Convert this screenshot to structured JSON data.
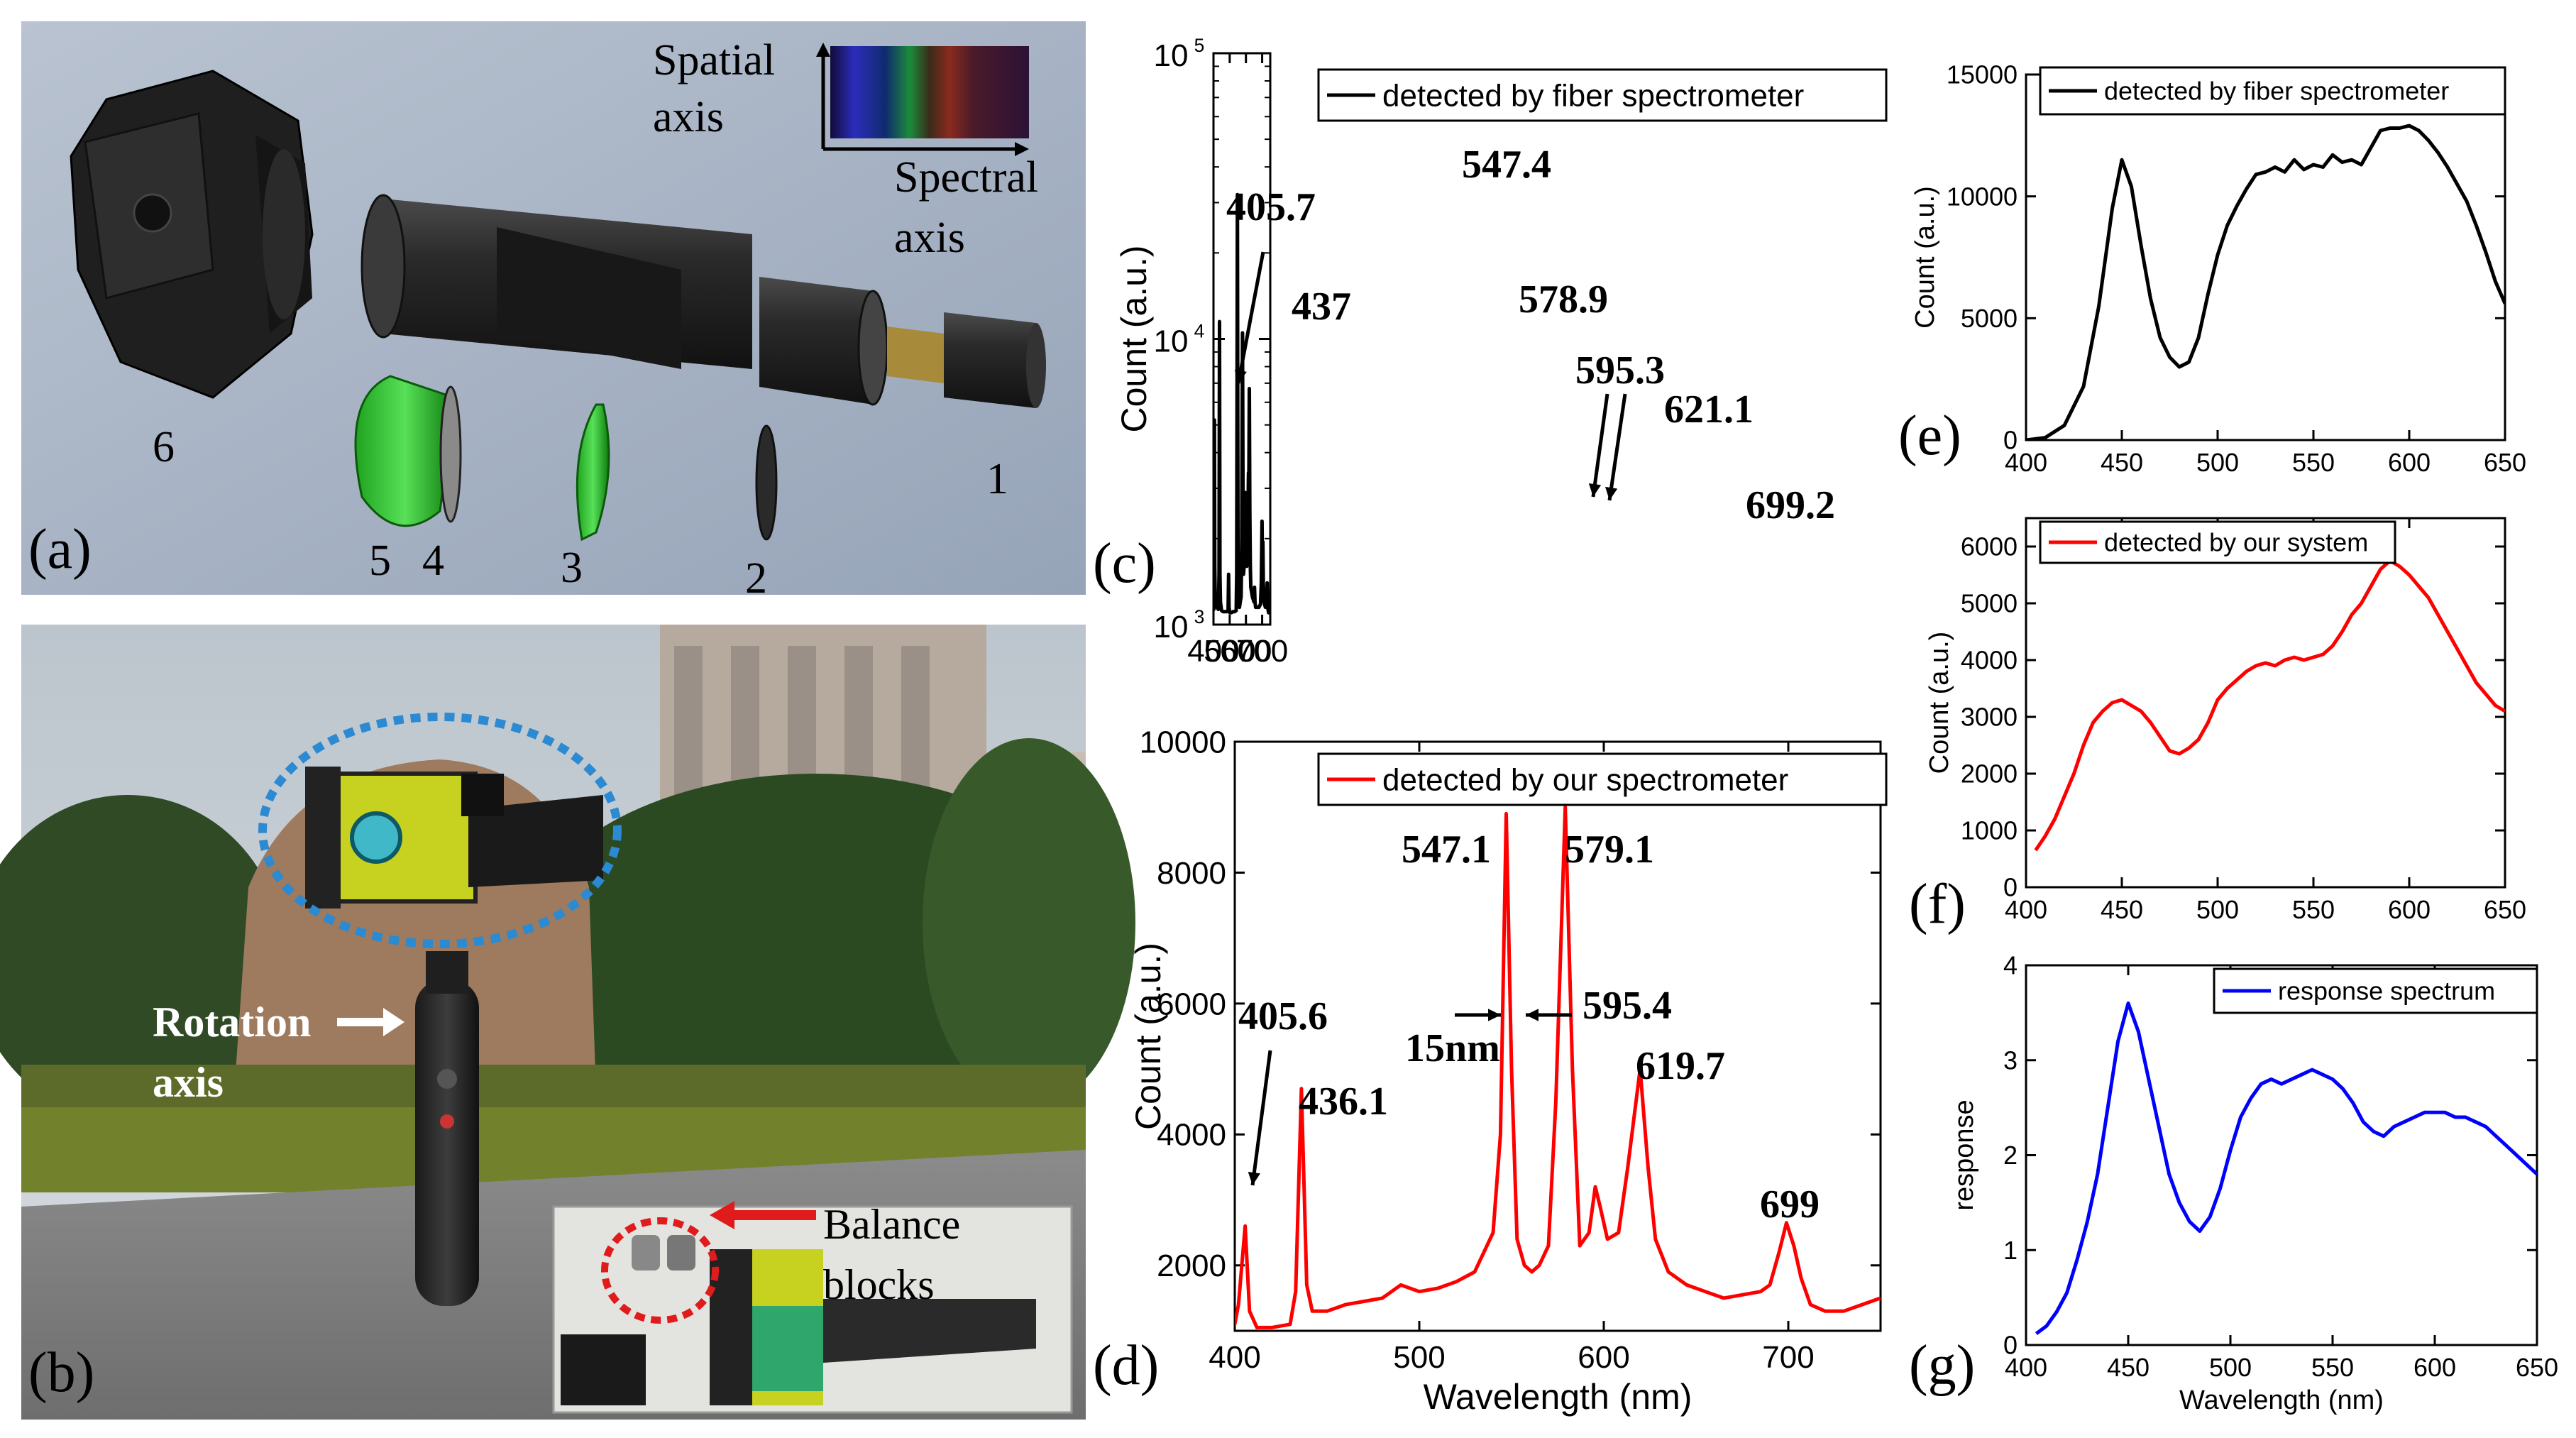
{
  "panels": {
    "a": {
      "label": "(a)",
      "spatial_axis": [
        "Spatial",
        "axis"
      ],
      "spectral_axis": [
        "Spectral",
        "axis"
      ],
      "part_numbers": [
        "1",
        "2",
        "3",
        "4",
        "5",
        "6"
      ]
    },
    "b": {
      "label": "(b)",
      "rotation_axis": [
        "Rotation",
        "axis"
      ],
      "balance_blocks": [
        "Balance",
        "blocks"
      ]
    },
    "c": {
      "label": "(c)"
    },
    "d": {
      "label": "(d)"
    },
    "e": {
      "label": "(e)"
    },
    "f": {
      "label": "(f)"
    },
    "g": {
      "label": "(g)"
    }
  },
  "colors": {
    "fiber": "#000000",
    "our": "#ff1a1a",
    "response": "#1a1aff",
    "render_bg": "#a9b5c6"
  },
  "chart_data": [
    {
      "id": "c",
      "type": "line",
      "ylabel": "Count (a.u.)",
      "xlabel": "",
      "xlim": [
        400,
        750
      ],
      "ylim": [
        1000,
        100000
      ],
      "yscale": "log",
      "xticks": [
        400,
        500,
        600,
        700
      ],
      "ytick_labels": [
        {
          "base": "10",
          "exp": "3"
        },
        {
          "base": "10",
          "exp": "4"
        },
        {
          "base": "10",
          "exp": "5"
        }
      ],
      "legend": "detected by fiber spectrometer",
      "series": [
        {
          "name": "detected by fiber spectrometer",
          "color": "#000000",
          "x": [
            400,
            403,
            405.7,
            408,
            411,
            420,
            430,
            434,
            437,
            440,
            443,
            450,
            460,
            470,
            480,
            490,
            493,
            496,
            500,
            510,
            520,
            530,
            540,
            543,
            547.4,
            551,
            555,
            560,
            565,
            570,
            574,
            578.9,
            582,
            585,
            589,
            592,
            595.3,
            598,
            601,
            605,
            608,
            612,
            615.5,
            618,
            621.1,
            624,
            627,
            630,
            640,
            650,
            653,
            656,
            660,
            670,
            680,
            690,
            695,
            699.2,
            702,
            704.5,
            707,
            712,
            720,
            728,
            731,
            734,
            740,
            750
          ],
          "y": [
            1120,
            1150,
            5200,
            1600,
            1200,
            1150,
            1130,
            1500,
            11500,
            1500,
            1200,
            1120,
            1110,
            1110,
            1110,
            1120,
            1500,
            1150,
            1100,
            1100,
            1110,
            1110,
            1120,
            1500,
            32000,
            2000,
            1300,
            1150,
            1200,
            1250,
            1800,
            10500,
            2800,
            1500,
            1600,
            1800,
            2900,
            2200,
            1800,
            1600,
            1700,
            2200,
            3400,
            3000,
            6700,
            2500,
            1600,
            1350,
            1250,
            1200,
            1350,
            1200,
            1150,
            1150,
            1150,
            1180,
            1400,
            2300,
            1600,
            1950,
            1400,
            1200,
            1150,
            1180,
            1400,
            1150,
            1100,
            1100
          ]
        }
      ],
      "annotations": [
        "405.7",
        "437",
        "547.4",
        "578.9",
        "595.3",
        "621.1",
        "699.2"
      ]
    },
    {
      "id": "d",
      "type": "line",
      "ylabel": "Count (a.u.)",
      "xlabel": "Wavelength (nm)",
      "xlim": [
        400,
        750
      ],
      "ylim": [
        1000,
        10000
      ],
      "xticks": [
        400,
        500,
        600,
        700
      ],
      "yticks": [
        2000,
        4000,
        6000,
        8000,
        10000
      ],
      "legend": "detected by our spectrometer",
      "series": [
        {
          "name": "detected by our spectrometer",
          "color": "#ff0000",
          "x": [
            400,
            402,
            405.6,
            408,
            412,
            420,
            430,
            433,
            436.1,
            439,
            442,
            450,
            460,
            470,
            480,
            490,
            500,
            510,
            520,
            530,
            535,
            540,
            544,
            547.1,
            550,
            553,
            557,
            561,
            565,
            570,
            574,
            579.1,
            583,
            587,
            592,
            595.4,
            598,
            602,
            608,
            613,
            619.7,
            624,
            628,
            635,
            645,
            655,
            665,
            675,
            685,
            690,
            695,
            699,
            703,
            707,
            712,
            720,
            730,
            740,
            750
          ],
          "y": [
            1100,
            1400,
            2600,
            1300,
            1050,
            1050,
            1100,
            1600,
            4700,
            1700,
            1300,
            1300,
            1400,
            1450,
            1500,
            1700,
            1600,
            1650,
            1750,
            1900,
            2200,
            2500,
            4000,
            8900,
            5000,
            2400,
            2000,
            1900,
            2000,
            2300,
            4500,
            9000,
            5000,
            2300,
            2500,
            3200,
            2900,
            2400,
            2500,
            3500,
            5000,
            3500,
            2400,
            1900,
            1700,
            1600,
            1500,
            1550,
            1600,
            1700,
            2200,
            2650,
            2300,
            1800,
            1400,
            1300,
            1300,
            1400,
            1500
          ]
        }
      ],
      "annotations": [
        "405.6",
        "436.1",
        "547.1",
        "579.1",
        "595.4",
        "15nm",
        "619.7",
        "699"
      ]
    },
    {
      "id": "e",
      "type": "line",
      "ylabel": "Count (a.u.)",
      "xlabel": "",
      "xlim": [
        400,
        650
      ],
      "ylim": [
        0,
        15000
      ],
      "xticks": [
        400,
        450,
        500,
        550,
        600,
        650
      ],
      "yticks": [
        0,
        5000,
        10000,
        15000
      ],
      "legend": "detected by fiber spectrometer",
      "series": [
        {
          "name": "detected by fiber spectrometer",
          "color": "#000000",
          "x": [
            400,
            410,
            420,
            430,
            438,
            445,
            450,
            455,
            460,
            465,
            470,
            475,
            480,
            485,
            490,
            495,
            500,
            505,
            510,
            515,
            520,
            525,
            530,
            535,
            540,
            545,
            550,
            555,
            560,
            565,
            570,
            575,
            580,
            585,
            590,
            595,
            600,
            605,
            610,
            615,
            620,
            625,
            630,
            635,
            640,
            645,
            650
          ],
          "y": [
            0,
            100,
            600,
            2200,
            5500,
            9500,
            11500,
            10400,
            8000,
            5800,
            4200,
            3400,
            3000,
            3200,
            4200,
            6000,
            7600,
            8800,
            9600,
            10300,
            10900,
            11000,
            11200,
            11000,
            11500,
            11100,
            11300,
            11200,
            11700,
            11400,
            11500,
            11300,
            12000,
            12700,
            12800,
            12800,
            12900,
            12700,
            12300,
            11800,
            11200,
            10500,
            9800,
            8800,
            7700,
            6500,
            5600
          ]
        }
      ]
    },
    {
      "id": "f",
      "type": "line",
      "ylabel": "Count (a.u.)",
      "xlabel": "",
      "xlim": [
        400,
        650
      ],
      "ylim": [
        0,
        6500
      ],
      "xticks": [
        400,
        450,
        500,
        550,
        600,
        650
      ],
      "yticks": [
        0,
        1000,
        2000,
        3000,
        4000,
        5000,
        6000
      ],
      "legend": "detected by our system",
      "series": [
        {
          "name": "detected by our system",
          "color": "#ff0000",
          "x": [
            405,
            410,
            415,
            420,
            425,
            430,
            435,
            440,
            445,
            450,
            455,
            460,
            465,
            470,
            475,
            480,
            485,
            490,
            495,
            500,
            505,
            510,
            515,
            520,
            525,
            530,
            535,
            540,
            545,
            550,
            555,
            560,
            565,
            570,
            575,
            580,
            585,
            590,
            595,
            600,
            605,
            610,
            615,
            620,
            625,
            630,
            635,
            640,
            645,
            650
          ],
          "y": [
            650,
            900,
            1200,
            1600,
            2000,
            2500,
            2900,
            3100,
            3250,
            3300,
            3200,
            3100,
            2900,
            2650,
            2400,
            2350,
            2450,
            2600,
            2900,
            3300,
            3500,
            3650,
            3800,
            3900,
            3950,
            3900,
            4000,
            4050,
            4000,
            4050,
            4100,
            4250,
            4500,
            4800,
            5000,
            5300,
            5600,
            5750,
            5650,
            5500,
            5300,
            5100,
            4800,
            4500,
            4200,
            3900,
            3600,
            3400,
            3200,
            3100
          ]
        }
      ]
    },
    {
      "id": "g",
      "type": "line",
      "ylabel": "response",
      "xlabel": "Wavelength (nm)",
      "xlim": [
        400,
        650
      ],
      "ylim": [
        0,
        4
      ],
      "xticks": [
        400,
        450,
        500,
        550,
        600,
        650
      ],
      "yticks": [
        0,
        1,
        2,
        3,
        4
      ],
      "legend": "response spectrum",
      "series": [
        {
          "name": "response spectrum",
          "color": "#0000ff",
          "x": [
            405,
            410,
            415,
            420,
            425,
            430,
            435,
            440,
            445,
            450,
            455,
            460,
            465,
            470,
            475,
            480,
            485,
            490,
            495,
            500,
            505,
            510,
            515,
            520,
            525,
            530,
            535,
            540,
            545,
            550,
            555,
            560,
            565,
            570,
            575,
            580,
            585,
            590,
            595,
            600,
            605,
            610,
            615,
            620,
            625,
            630,
            635,
            640,
            645,
            650
          ],
          "y": [
            0.12,
            0.2,
            0.35,
            0.55,
            0.9,
            1.3,
            1.8,
            2.5,
            3.2,
            3.6,
            3.3,
            2.8,
            2.3,
            1.8,
            1.5,
            1.3,
            1.2,
            1.35,
            1.65,
            2.05,
            2.4,
            2.6,
            2.75,
            2.8,
            2.75,
            2.8,
            2.85,
            2.9,
            2.85,
            2.8,
            2.7,
            2.55,
            2.35,
            2.25,
            2.2,
            2.3,
            2.35,
            2.4,
            2.45,
            2.45,
            2.45,
            2.4,
            2.4,
            2.35,
            2.3,
            2.2,
            2.1,
            2.0,
            1.9,
            1.8
          ]
        }
      ]
    }
  ]
}
